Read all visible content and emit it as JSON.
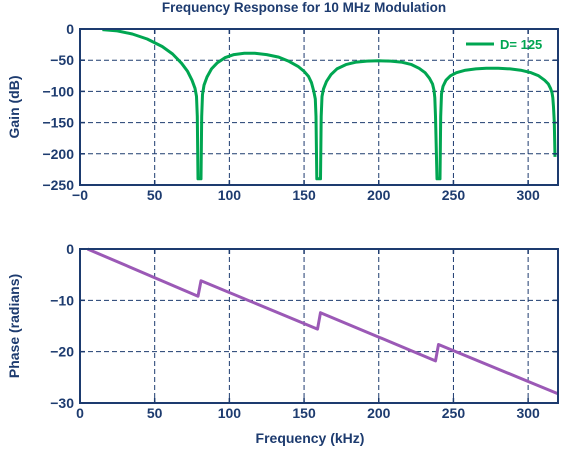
{
  "chart_data": [
    {
      "type": "line",
      "title": "Frequency Response for 10 MHz Modulation",
      "xlabel": "",
      "ylabel": "Gain (dB)",
      "xlim": [
        0,
        320
      ],
      "ylim": [
        -250,
        0
      ],
      "xticks": [
        0,
        50,
        100,
        150,
        200,
        250,
        300
      ],
      "xtick_labels": [
        "−0",
        "50",
        "100",
        "150",
        "200",
        "250",
        "300"
      ],
      "yticks": [
        0,
        -50,
        -100,
        -150,
        -200,
        -250
      ],
      "ytick_labels": [
        "0",
        "−50",
        "−100",
        "−150",
        "−200",
        "−250"
      ],
      "grid": true,
      "legend_position": "top-right",
      "series": [
        {
          "name": "D= 125",
          "color": "#00a651",
          "x": [
            15,
            25,
            35,
            45,
            55,
            62,
            68,
            72,
            75,
            77,
            78,
            78.5,
            79,
            80,
            81,
            81.5,
            82,
            83,
            85,
            88,
            92,
            97,
            103,
            110,
            117,
            125,
            133,
            140,
            146,
            150,
            153,
            155,
            156.5,
            157.5,
            158,
            158.5,
            159,
            160,
            161,
            161.5,
            162,
            163,
            165,
            168,
            172,
            178,
            185,
            192,
            200,
            208,
            215,
            222,
            227,
            231,
            234,
            236,
            237,
            237.5,
            238,
            239,
            240,
            241,
            241.5,
            242,
            243,
            245,
            248,
            252,
            258,
            265,
            272,
            280,
            288,
            295,
            302,
            307,
            311,
            313.5,
            315,
            316,
            316.5,
            317,
            317.5,
            318
          ],
          "y": [
            -1,
            -3,
            -8,
            -16,
            -28,
            -40,
            -55,
            -68,
            -82,
            -95,
            -108,
            -140,
            -240,
            -240,
            -240,
            -140,
            -105,
            -90,
            -77,
            -64,
            -54,
            -46,
            -41,
            -39,
            -39,
            -41,
            -45,
            -52,
            -60,
            -68,
            -76,
            -86,
            -100,
            -112,
            -140,
            -240,
            -240,
            -240,
            -240,
            -140,
            -108,
            -96,
            -84,
            -73,
            -64,
            -57,
            -53,
            -51.5,
            -51,
            -51.5,
            -53,
            -57,
            -63,
            -70,
            -79,
            -88,
            -98,
            -110,
            -140,
            -240,
            -240,
            -240,
            -140,
            -104,
            -92,
            -82,
            -75,
            -70,
            -66,
            -64,
            -63,
            -63,
            -64,
            -66,
            -70,
            -75,
            -82,
            -88,
            -95,
            -102,
            -110,
            -125,
            -150,
            -205
          ]
        }
      ]
    },
    {
      "type": "line",
      "title": "",
      "xlabel": "Frequency (kHz)",
      "ylabel": "Phase (radians)",
      "xlim": [
        0,
        320
      ],
      "ylim": [
        -30,
        0
      ],
      "xticks": [
        0,
        50,
        100,
        150,
        200,
        250,
        300
      ],
      "xtick_labels": [
        "0",
        "50",
        "100",
        "150",
        "200",
        "250",
        "300"
      ],
      "yticks": [
        0,
        -10,
        -20,
        -30
      ],
      "ytick_labels": [
        "0",
        "−10",
        "−20",
        "−30"
      ],
      "grid": true,
      "series": [
        {
          "color": "#9b59b6",
          "x": [
            5,
            79,
            81,
            159,
            161,
            238,
            240,
            320
          ],
          "y": [
            0,
            -9.2,
            -6.2,
            -15.6,
            -12.4,
            -21.8,
            -18.6,
            -28.2
          ]
        }
      ]
    }
  ]
}
